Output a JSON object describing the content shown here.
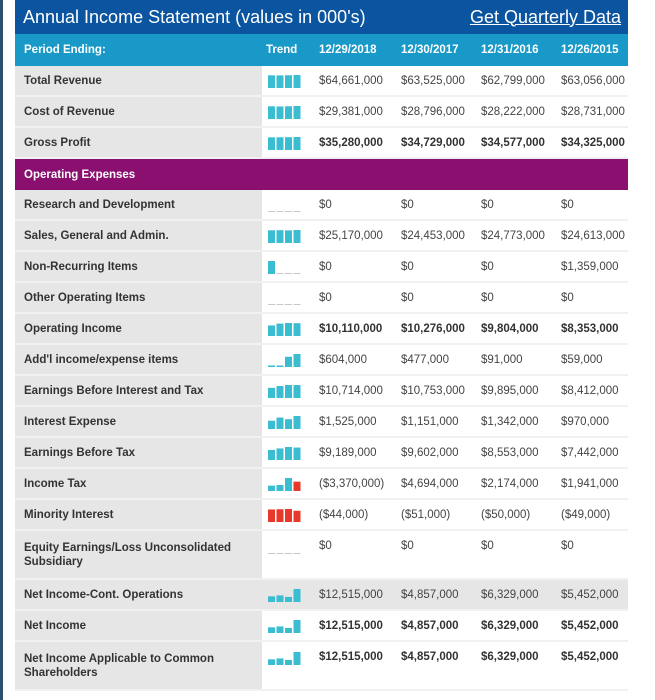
{
  "header": {
    "title": "Annual Income Statement (values in 000's)",
    "quarterly_link": "Get Quarterly Data"
  },
  "columns": {
    "period": "Period Ending:",
    "trend": "Trend",
    "dates": [
      "12/29/2018",
      "12/30/2017",
      "12/31/2016",
      "12/26/2015"
    ]
  },
  "colors": {
    "header": "#0b54a0",
    "column_header": "#1899c8",
    "section": "#8b0f6e",
    "trend_positive": "#3bbdd1",
    "trend_negative": "#e8382a"
  },
  "rows": [
    {
      "label": "Total Revenue",
      "values": [
        "$64,661,000",
        "$63,525,000",
        "$62,799,000",
        "$63,056,000"
      ]
    },
    {
      "label": "Cost of Revenue",
      "values": [
        "$29,381,000",
        "$28,796,000",
        "$28,222,000",
        "$28,731,000"
      ]
    },
    {
      "label": "Gross Profit",
      "bold": true,
      "values": [
        "$35,280,000",
        "$34,729,000",
        "$34,577,000",
        "$34,325,000"
      ]
    },
    {
      "label": "Operating Expenses",
      "section": true
    },
    {
      "label": "Research and Development",
      "values": [
        "$0",
        "$0",
        "$0",
        "$0"
      ]
    },
    {
      "label": "Sales, General and Admin.",
      "values": [
        "$25,170,000",
        "$24,453,000",
        "$24,773,000",
        "$24,613,000"
      ]
    },
    {
      "label": "Non-Recurring Items",
      "values": [
        "$0",
        "$0",
        "$0",
        "$1,359,000"
      ]
    },
    {
      "label": "Other Operating Items",
      "values": [
        "$0",
        "$0",
        "$0",
        "$0"
      ]
    },
    {
      "label": "Operating Income",
      "bold": true,
      "values": [
        "$10,110,000",
        "$10,276,000",
        "$9,804,000",
        "$8,353,000"
      ]
    },
    {
      "label": "Add'l income/expense items",
      "values": [
        "$604,000",
        "$477,000",
        "$91,000",
        "$59,000"
      ]
    },
    {
      "label": "Earnings Before Interest and Tax",
      "values": [
        "$10,714,000",
        "$10,753,000",
        "$9,895,000",
        "$8,412,000"
      ]
    },
    {
      "label": "Interest Expense",
      "values": [
        "$1,525,000",
        "$1,151,000",
        "$1,342,000",
        "$970,000"
      ]
    },
    {
      "label": "Earnings Before Tax",
      "values": [
        "$9,189,000",
        "$9,602,000",
        "$8,553,000",
        "$7,442,000"
      ]
    },
    {
      "label": "Income Tax",
      "values": [
        "($3,370,000)",
        "$4,694,000",
        "$2,174,000",
        "$1,941,000"
      ]
    },
    {
      "label": "Minority Interest",
      "values": [
        "($44,000)",
        "($51,000)",
        "($50,000)",
        "($49,000)"
      ]
    },
    {
      "label": "Equity Earnings/Loss Unconsolidated Subsidiary",
      "values": [
        "$0",
        "$0",
        "$0",
        "$0"
      ]
    },
    {
      "label": "Net Income-Cont. Operations",
      "shade": true,
      "values": [
        "$12,515,000",
        "$4,857,000",
        "$6,329,000",
        "$5,452,000"
      ]
    },
    {
      "label": "Net Income",
      "bold": true,
      "values": [
        "$12,515,000",
        "$4,857,000",
        "$6,329,000",
        "$5,452,000"
      ]
    },
    {
      "label": "Net Income Applicable to Common Shareholders",
      "bold": true,
      "values": [
        "$12,515,000",
        "$4,857,000",
        "$6,329,000",
        "$5,452,000"
      ]
    }
  ]
}
